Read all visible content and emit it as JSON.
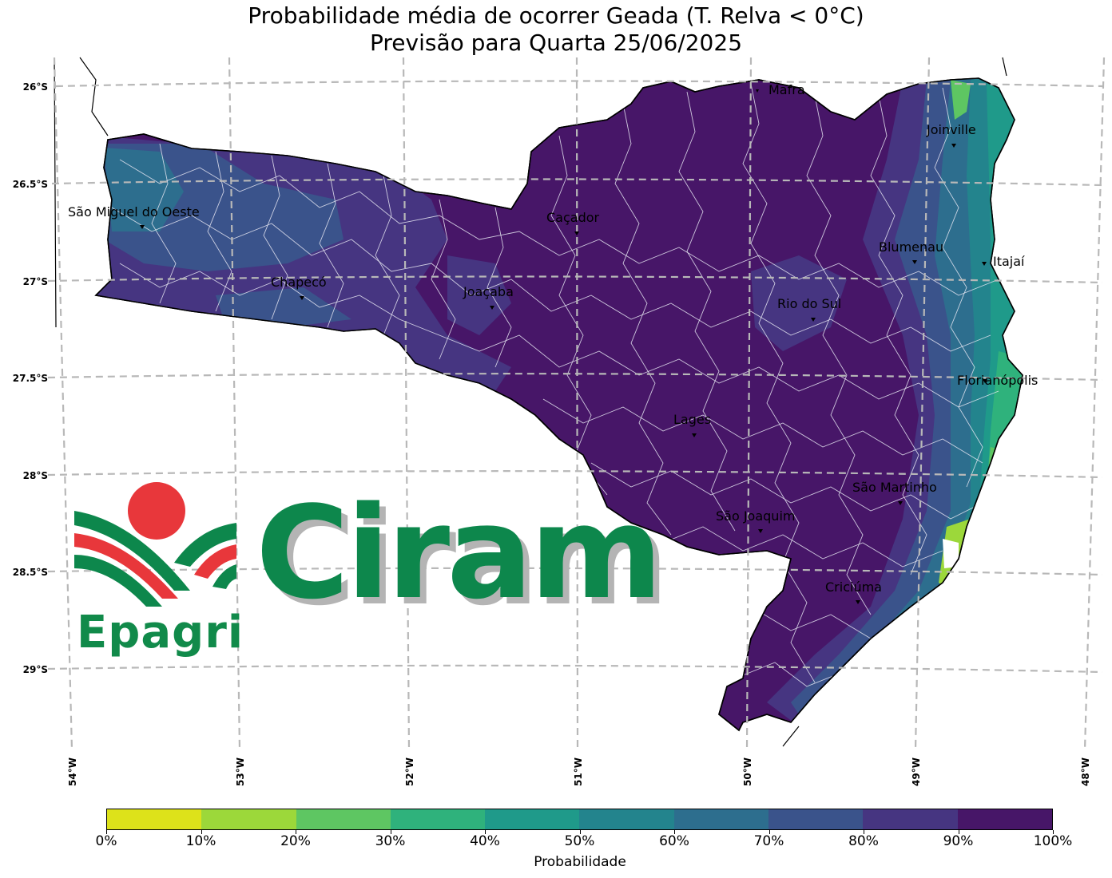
{
  "title": {
    "line1": "Probabilidade média de ocorrer Geada (T. Relva < 0°C)",
    "line2": "Previsão para Quarta 25/06/2025"
  },
  "lat_labels": [
    "26°S",
    "26.5°S",
    "27°S",
    "27.5°S",
    "28°S",
    "28.5°S",
    "29°S"
  ],
  "lon_labels": [
    "54°W",
    "53°W",
    "52°W",
    "51°W",
    "50°W",
    "49°W",
    "48°W"
  ],
  "cities": [
    {
      "name": "Mafra"
    },
    {
      "name": "Joinville"
    },
    {
      "name": "São Miguel do Oeste"
    },
    {
      "name": "Caçador"
    },
    {
      "name": "Blumenau"
    },
    {
      "name": "Itajaí"
    },
    {
      "name": "Chapecó"
    },
    {
      "name": "Joaçaba"
    },
    {
      "name": "Rio do Sul"
    },
    {
      "name": "Florianópolis"
    },
    {
      "name": "Lages"
    },
    {
      "name": "São Martinho"
    },
    {
      "name": "São Joaquim"
    },
    {
      "name": "Criciúma"
    }
  ],
  "colorbar": {
    "label": "Probabilidade",
    "ticks": [
      "0%",
      "10%",
      "20%",
      "30%",
      "40%",
      "50%",
      "60%",
      "70%",
      "80%",
      "90%",
      "100%"
    ],
    "colors": [
      "#dde21a",
      "#9cd83a",
      "#5ec662",
      "#2fb27c",
      "#1f9a8a",
      "#23848d",
      "#2d6e8e",
      "#3a538b",
      "#463581",
      "#471668"
    ]
  },
  "logo": {
    "brand": "Epagri",
    "product": "Ciram",
    "colors": {
      "green": "#0d874c",
      "red": "#e8373b"
    }
  }
}
